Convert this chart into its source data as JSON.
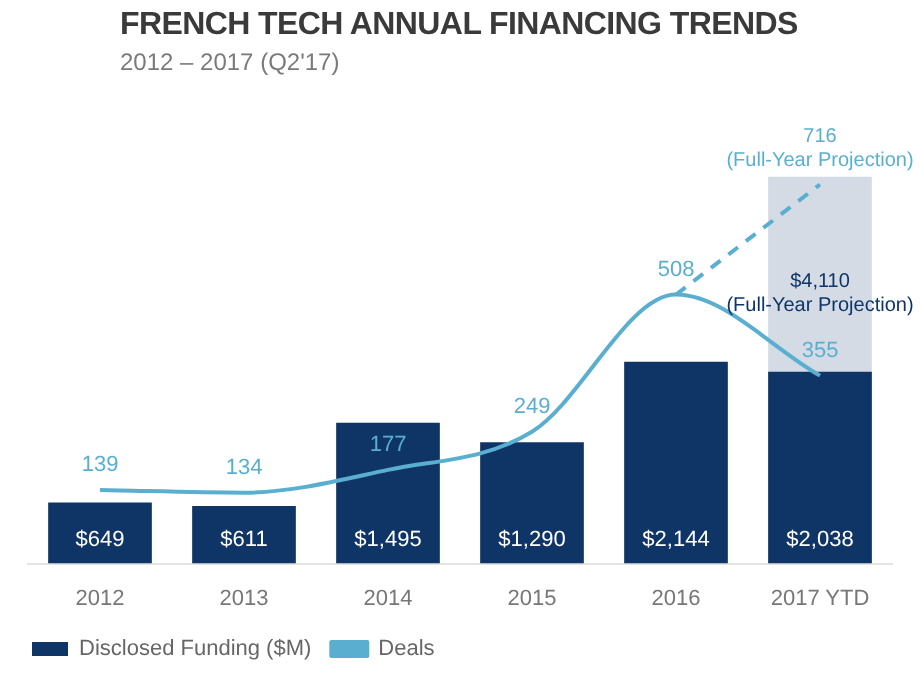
{
  "chart_data": {
    "type": "bar",
    "title": "FRENCH TECH ANNUAL FINANCING TRENDS",
    "subtitle": "2012 – 2017 (Q2'17)",
    "categories": [
      "2012",
      "2013",
      "2014",
      "2015",
      "2016",
      "2017 YTD"
    ],
    "tick_labels": "x",
    "grid": false,
    "legend": "bottom left",
    "marker": "none",
    "series": [
      {
        "name": "Disclosed Funding ($M)",
        "color": "#0f3567",
        "values": [
          649,
          611,
          1495,
          1290,
          2144,
          2038
        ],
        "value_labels": [
          "$649",
          "$611",
          "$1,495",
          "$1,290",
          "$2,144",
          "$2,038"
        ]
      },
      {
        "color": "#d4dbe5",
        "values": [
          null,
          null,
          null,
          null,
          null,
          4110
        ],
        "value_labels": [
          null,
          null,
          null,
          null,
          null,
          "$4,110\n(Full-Year Projection)"
        ]
      },
      {
        "name": "Deals",
        "type": "line",
        "axis": "y2",
        "color": "#5aafd1",
        "line_style": "solid",
        "values": [
          139,
          134,
          177,
          249,
          508,
          355
        ],
        "value_labels": [
          "139",
          "134",
          "177",
          "249",
          "508",
          "355"
        ]
      },
      {
        "type": "line",
        "axis": "y2",
        "color": "#5aafd1",
        "line_style": "dashed",
        "values": [
          null,
          null,
          null,
          null,
          508,
          716
        ],
        "value_labels": [
          null,
          null,
          null,
          null,
          null,
          "716\n(Full-Year Projection)"
        ]
      }
    ]
  }
}
